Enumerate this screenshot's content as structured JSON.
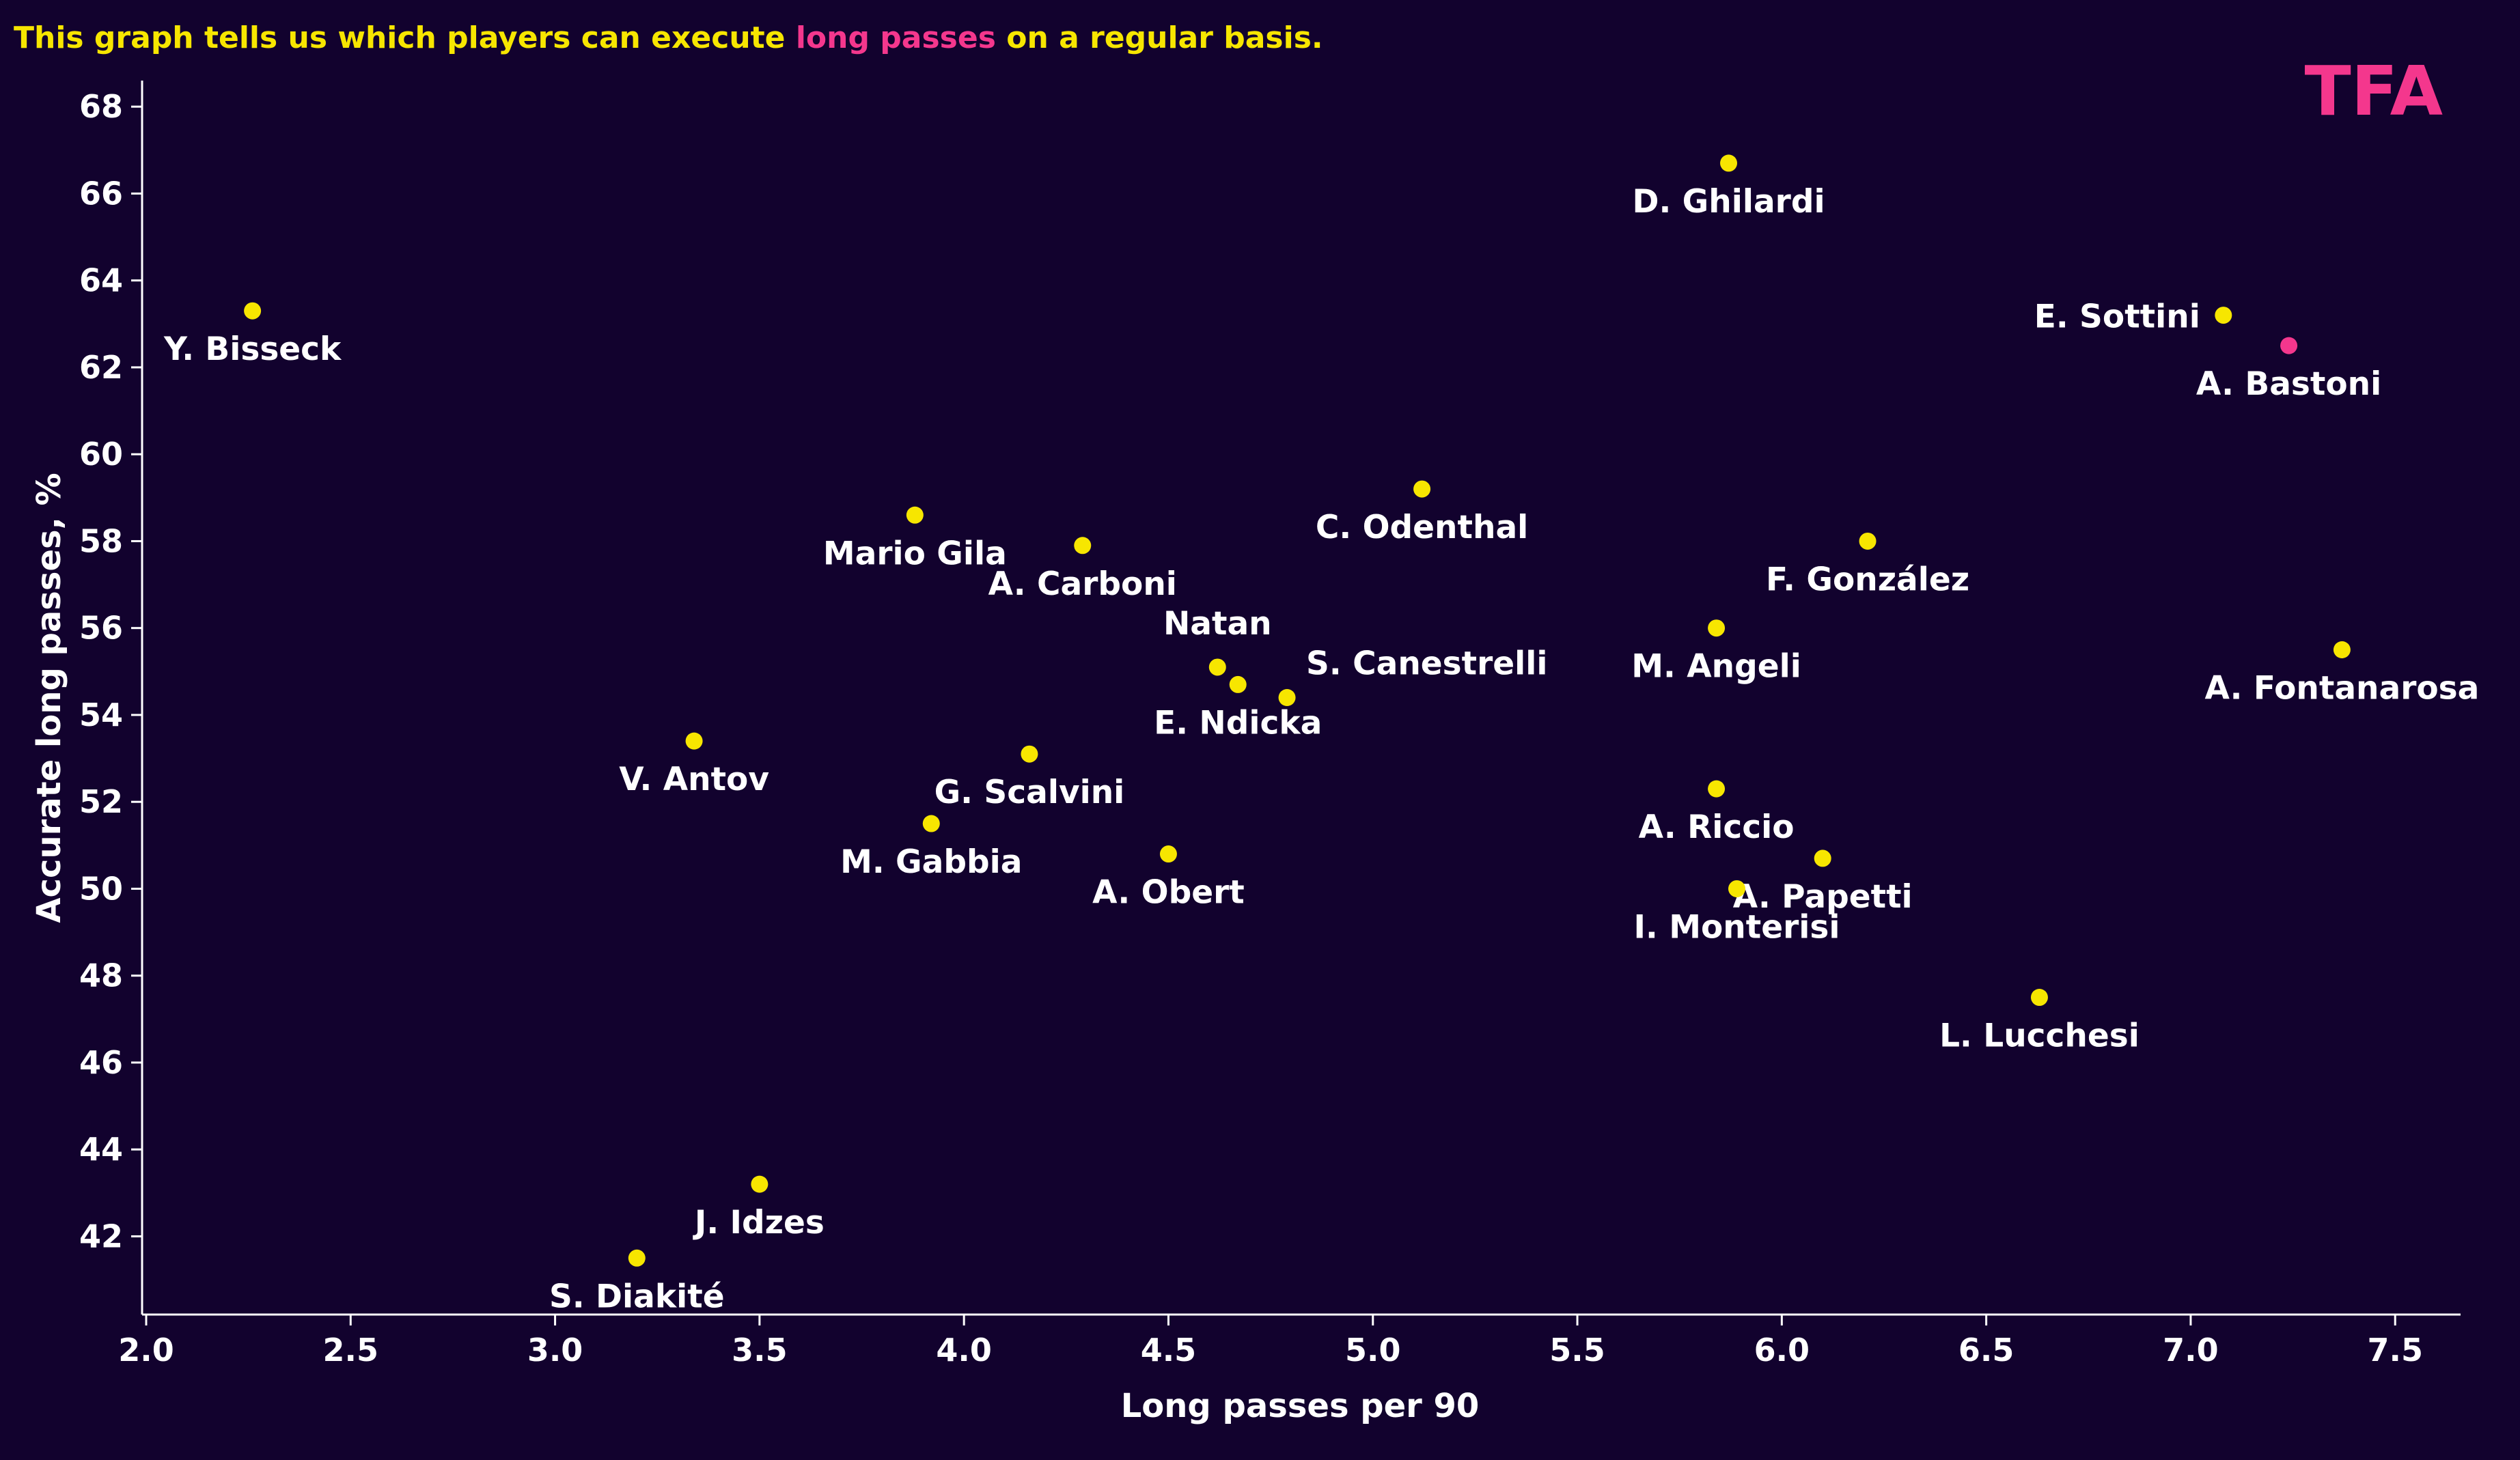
{
  "colors": {
    "background": "#12022e",
    "title": "#f7e600",
    "highlight": "#f4378d",
    "point": "#f7e600",
    "axis": "#ffffff",
    "text": "#ffffff"
  },
  "title": {
    "part1": "This graph tells us which players can execute ",
    "highlight": "long passes",
    "part2": " on a regular basis."
  },
  "logo": {
    "text": "TFA"
  },
  "chart_data": {
    "type": "scatter",
    "title": "This graph tells us which players can execute long passes on a regular basis.",
    "xlabel": "Long passes per 90",
    "ylabel": "Accurate long passes, %",
    "xlim": [
      1.99,
      7.66
    ],
    "ylim": [
      40.2,
      68.6
    ],
    "xticks": [
      "2.0",
      "2.5",
      "3.0",
      "3.5",
      "4.0",
      "4.5",
      "5.0",
      "5.5",
      "6.0",
      "6.5",
      "7.0",
      "7.5"
    ],
    "yticks": [
      "42",
      "44",
      "46",
      "48",
      "50",
      "52",
      "54",
      "56",
      "58",
      "60",
      "62",
      "64",
      "66",
      "68"
    ],
    "grid": false,
    "points": [
      {
        "name": "Y. Bisseck",
        "x": 2.26,
        "y": 63.3,
        "label_pos": "below",
        "highlight": false
      },
      {
        "name": "D. Ghilardi",
        "x": 5.87,
        "y": 66.7,
        "label_pos": "below",
        "highlight": false
      },
      {
        "name": "E. Sottini",
        "x": 7.08,
        "y": 63.2,
        "label_pos": "left",
        "highlight": false
      },
      {
        "name": "A. Bastoni",
        "x": 7.24,
        "y": 62.5,
        "label_pos": "below",
        "highlight": true
      },
      {
        "name": "C. Odenthal",
        "x": 5.12,
        "y": 59.2,
        "label_pos": "below",
        "highlight": false
      },
      {
        "name": "Mario Gila",
        "x": 3.88,
        "y": 58.6,
        "label_pos": "below",
        "highlight": false
      },
      {
        "name": "A. Carboni",
        "x": 4.29,
        "y": 57.9,
        "label_pos": "below",
        "highlight": false
      },
      {
        "name": "F. González",
        "x": 6.21,
        "y": 58.0,
        "label_pos": "below",
        "highlight": false
      },
      {
        "name": "M. Angeli",
        "x": 5.84,
        "y": 56.0,
        "label_pos": "below",
        "highlight": false
      },
      {
        "name": "A. Fontanarosa",
        "x": 7.37,
        "y": 55.5,
        "label_pos": "below",
        "highlight": false
      },
      {
        "name": "Natan",
        "x": 4.62,
        "y": 55.1,
        "label_pos": "above",
        "highlight": false
      },
      {
        "name": "E. Ndicka",
        "x": 4.67,
        "y": 54.7,
        "label_pos": "below",
        "highlight": false
      },
      {
        "name": "S. Canestrelli",
        "x": 4.79,
        "y": 54.4,
        "label_pos": "right",
        "highlight": false
      },
      {
        "name": "V. Antov",
        "x": 3.34,
        "y": 53.4,
        "label_pos": "below",
        "highlight": false
      },
      {
        "name": "G. Scalvini",
        "x": 4.16,
        "y": 53.1,
        "label_pos": "below",
        "highlight": false
      },
      {
        "name": "A. Riccio",
        "x": 5.84,
        "y": 52.3,
        "label_pos": "below",
        "highlight": false
      },
      {
        "name": "M. Gabbia",
        "x": 3.92,
        "y": 51.5,
        "label_pos": "below",
        "highlight": false
      },
      {
        "name": "A. Obert",
        "x": 4.5,
        "y": 50.8,
        "label_pos": "below",
        "highlight": false
      },
      {
        "name": "A. Papetti",
        "x": 6.1,
        "y": 50.7,
        "label_pos": "below",
        "highlight": false
      },
      {
        "name": "I. Monterisi",
        "x": 5.89,
        "y": 50.0,
        "label_pos": "below",
        "highlight": false
      },
      {
        "name": "L. Lucchesi",
        "x": 6.63,
        "y": 47.5,
        "label_pos": "below",
        "highlight": false
      },
      {
        "name": "J. Idzes",
        "x": 3.5,
        "y": 43.2,
        "label_pos": "below",
        "highlight": false
      },
      {
        "name": "S. Diakité",
        "x": 3.2,
        "y": 41.5,
        "label_pos": "below",
        "highlight": false
      }
    ]
  }
}
